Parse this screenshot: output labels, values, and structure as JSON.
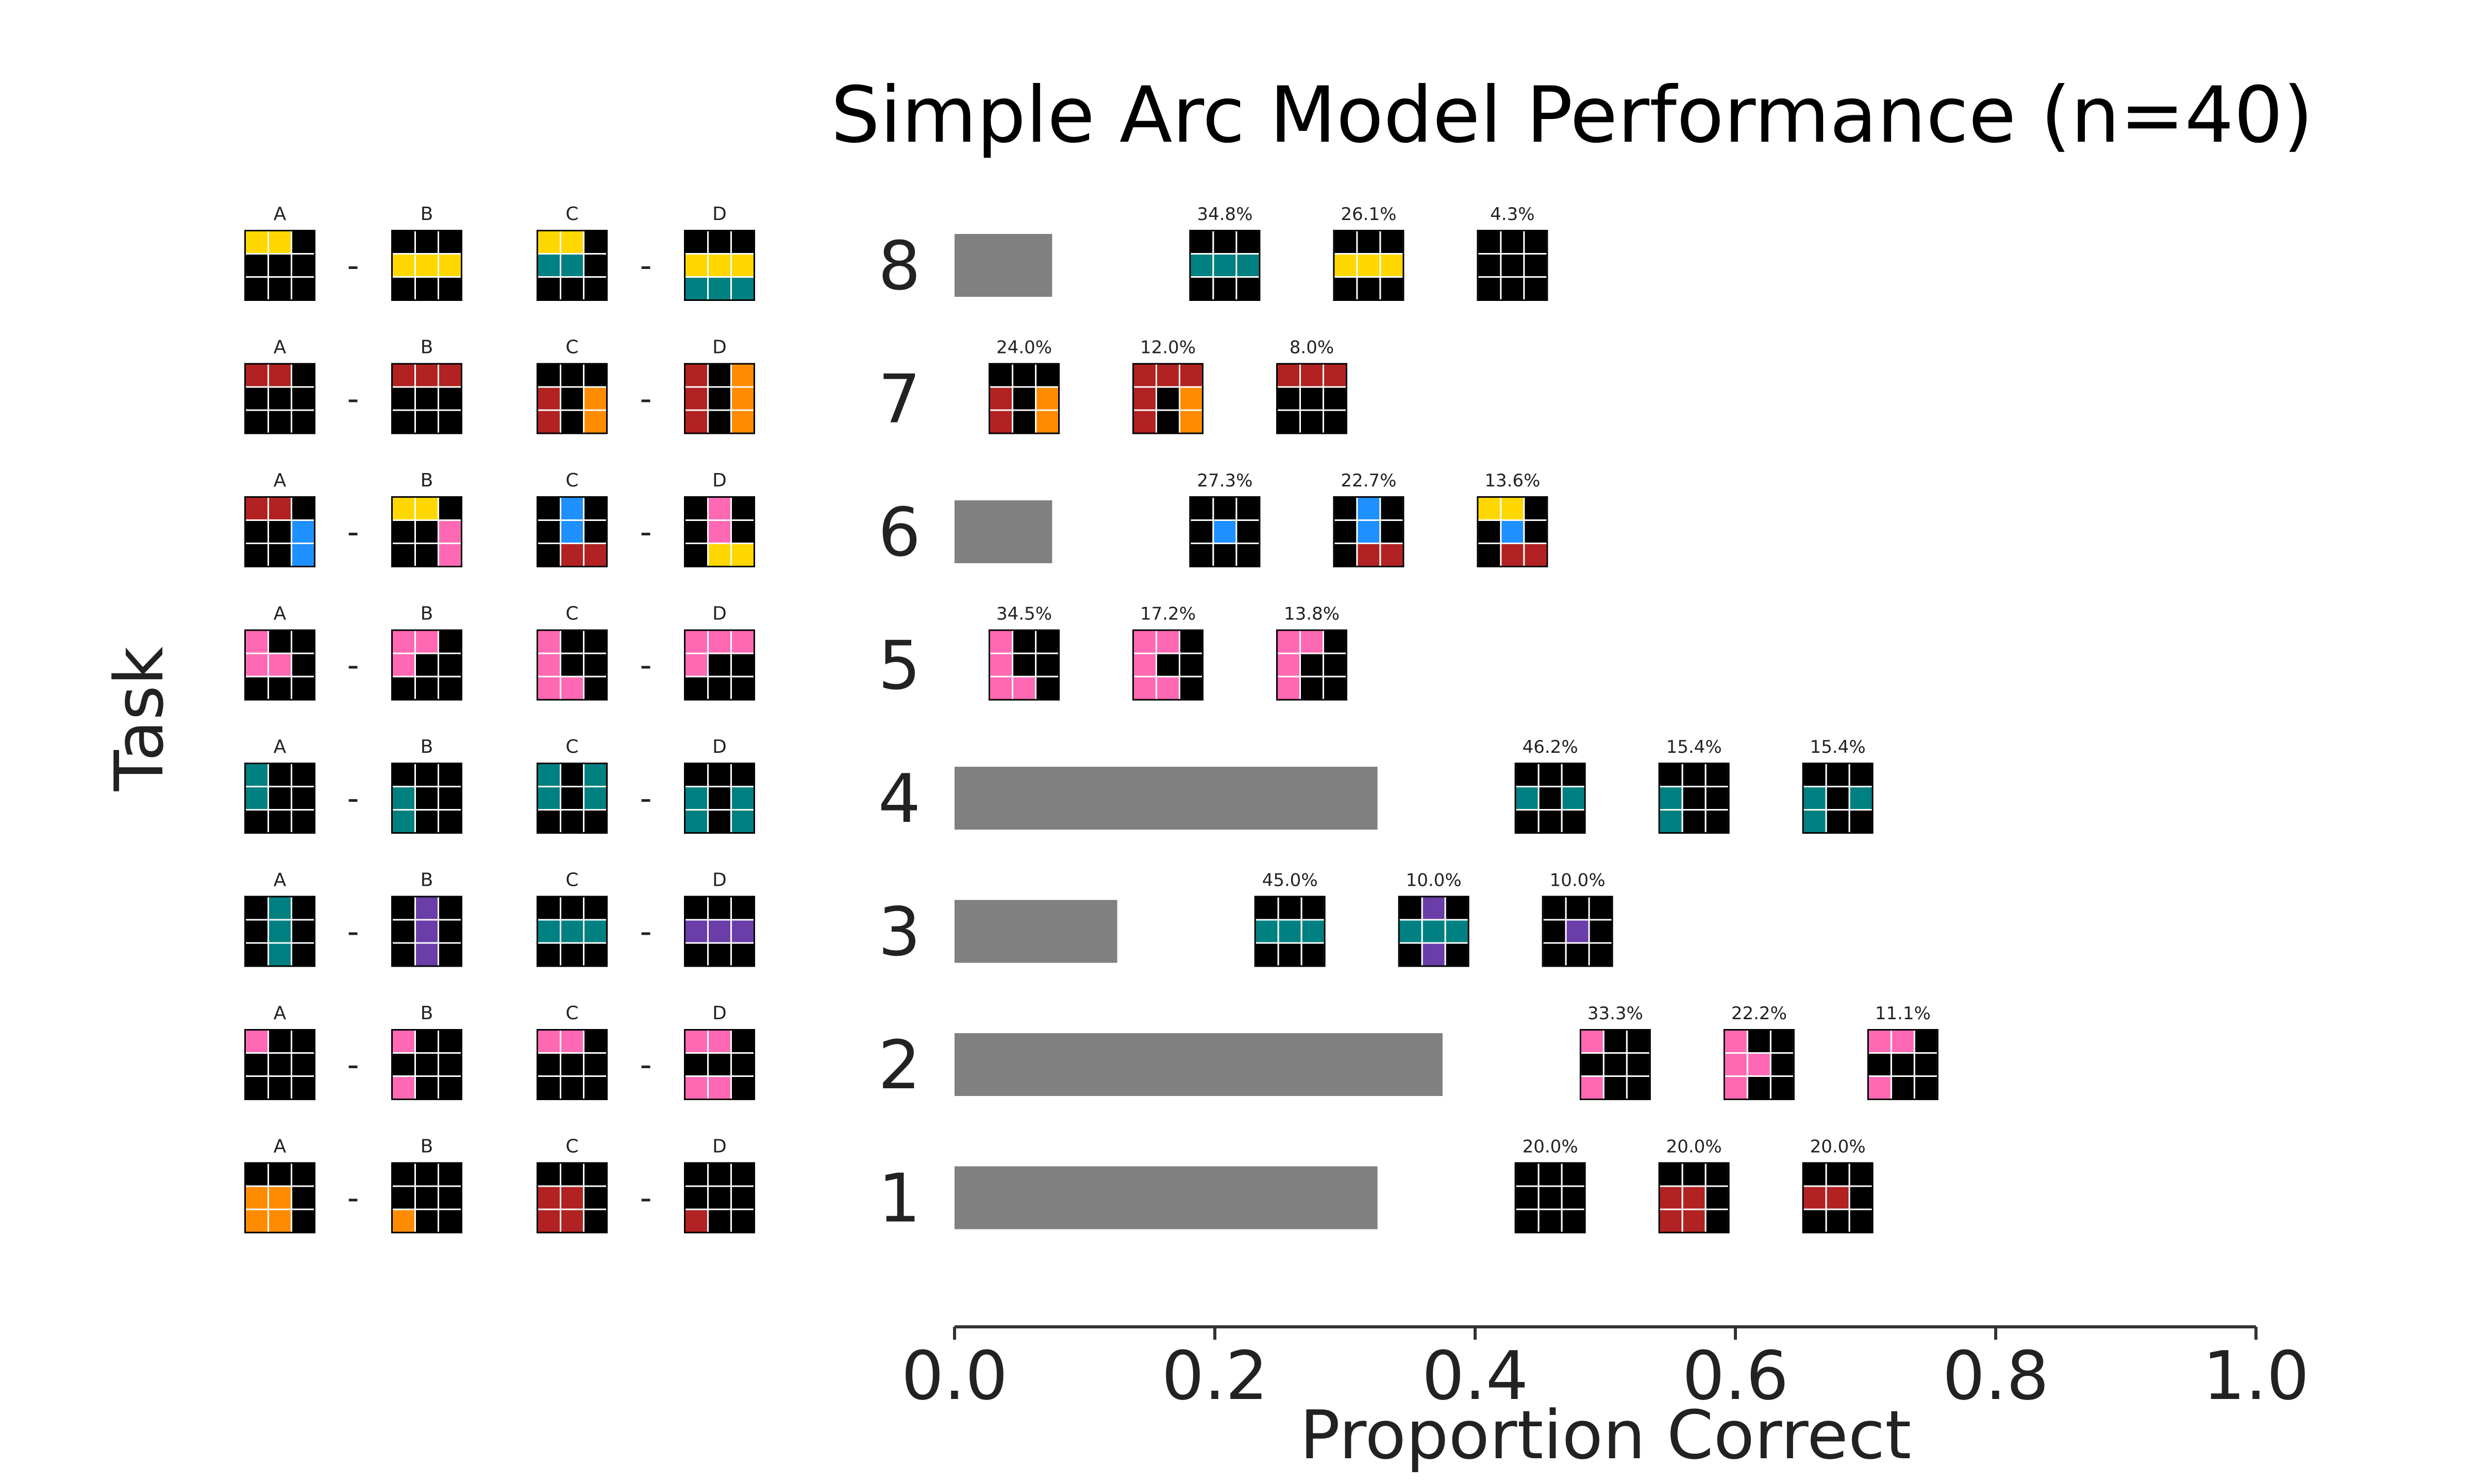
{
  "chart_data": {
    "type": "bar",
    "orientation": "horizontal",
    "title": "Simple Arc Model Performance (n=40)",
    "xlabel": "Proportion Correct",
    "ylabel": "Task",
    "xlim": [
      0,
      1
    ],
    "xticks": [
      "0.0",
      "0.2",
      "0.4",
      "0.6",
      "0.8",
      "1.0"
    ],
    "grid": false,
    "bar_color": "#808080",
    "palette": {
      "black": "#000000",
      "yellow": "#FFD700",
      "teal": "#008080",
      "red": "#B22222",
      "orange": "#FF8C00",
      "blue": "#1E90FF",
      "pink": "#FF69B4",
      "purple": "#6A3DA8"
    },
    "analogy_labels": [
      "A",
      "B",
      "C",
      "D"
    ],
    "separator": "-",
    "tasks": [
      {
        "task": "8",
        "value": 0.075,
        "analogy": [
          [
            "yellow",
            "yellow",
            "black",
            "black",
            "black",
            "black",
            "black",
            "black",
            "black"
          ],
          [
            "black",
            "black",
            "black",
            "yellow",
            "yellow",
            "yellow",
            "black",
            "black",
            "black"
          ],
          [
            "yellow",
            "yellow",
            "black",
            "teal",
            "teal",
            "black",
            "black",
            "black",
            "black"
          ],
          [
            "black",
            "black",
            "black",
            "yellow",
            "yellow",
            "yellow",
            "teal",
            "teal",
            "teal"
          ]
        ],
        "errors": [
          {
            "percent": "34.8%",
            "grid": [
              "black",
              "black",
              "black",
              "teal",
              "teal",
              "teal",
              "black",
              "black",
              "black"
            ]
          },
          {
            "percent": "26.1%",
            "grid": [
              "black",
              "black",
              "black",
              "yellow",
              "yellow",
              "yellow",
              "black",
              "black",
              "black"
            ]
          },
          {
            "percent": "4.3%",
            "grid": [
              "black",
              "black",
              "black",
              "black",
              "black",
              "black",
              "black",
              "black",
              "black"
            ]
          }
        ]
      },
      {
        "task": "7",
        "value": 0.0,
        "analogy": [
          [
            "red",
            "red",
            "black",
            "black",
            "black",
            "black",
            "black",
            "black",
            "black"
          ],
          [
            "red",
            "red",
            "red",
            "black",
            "black",
            "black",
            "black",
            "black",
            "black"
          ],
          [
            "black",
            "black",
            "black",
            "red",
            "black",
            "orange",
            "red",
            "black",
            "orange"
          ],
          [
            "red",
            "black",
            "orange",
            "red",
            "black",
            "orange",
            "red",
            "black",
            "orange"
          ]
        ],
        "errors": [
          {
            "percent": "24.0%",
            "grid": [
              "black",
              "black",
              "black",
              "red",
              "black",
              "orange",
              "red",
              "black",
              "orange"
            ]
          },
          {
            "percent": "12.0%",
            "grid": [
              "red",
              "red",
              "red",
              "red",
              "black",
              "orange",
              "red",
              "black",
              "orange"
            ]
          },
          {
            "percent": "8.0%",
            "grid": [
              "red",
              "red",
              "red",
              "black",
              "black",
              "black",
              "black",
              "black",
              "black"
            ]
          }
        ]
      },
      {
        "task": "6",
        "value": 0.075,
        "analogy": [
          [
            "red",
            "red",
            "black",
            "black",
            "black",
            "blue",
            "black",
            "black",
            "blue"
          ],
          [
            "yellow",
            "yellow",
            "black",
            "black",
            "black",
            "pink",
            "black",
            "black",
            "pink"
          ],
          [
            "black",
            "blue",
            "black",
            "black",
            "blue",
            "black",
            "black",
            "red",
            "red"
          ],
          [
            "black",
            "pink",
            "black",
            "black",
            "pink",
            "black",
            "black",
            "yellow",
            "yellow"
          ]
        ],
        "errors": [
          {
            "percent": "27.3%",
            "grid": [
              "black",
              "black",
              "black",
              "black",
              "blue",
              "black",
              "black",
              "black",
              "black"
            ]
          },
          {
            "percent": "22.7%",
            "grid": [
              "black",
              "blue",
              "black",
              "black",
              "blue",
              "black",
              "black",
              "red",
              "red"
            ]
          },
          {
            "percent": "13.6%",
            "grid": [
              "yellow",
              "yellow",
              "black",
              "black",
              "blue",
              "black",
              "black",
              "red",
              "red"
            ]
          }
        ]
      },
      {
        "task": "5",
        "value": 0.0,
        "analogy": [
          [
            "pink",
            "black",
            "black",
            "pink",
            "pink",
            "black",
            "black",
            "black",
            "black"
          ],
          [
            "pink",
            "pink",
            "black",
            "pink",
            "black",
            "black",
            "black",
            "black",
            "black"
          ],
          [
            "pink",
            "black",
            "black",
            "pink",
            "black",
            "black",
            "pink",
            "pink",
            "black"
          ],
          [
            "pink",
            "pink",
            "pink",
            "pink",
            "black",
            "black",
            "black",
            "black",
            "black"
          ]
        ],
        "errors": [
          {
            "percent": "34.5%",
            "grid": [
              "pink",
              "black",
              "black",
              "pink",
              "black",
              "black",
              "pink",
              "pink",
              "black"
            ]
          },
          {
            "percent": "17.2%",
            "grid": [
              "pink",
              "pink",
              "black",
              "pink",
              "black",
              "black",
              "pink",
              "pink",
              "black"
            ]
          },
          {
            "percent": "13.8%",
            "grid": [
              "pink",
              "pink",
              "black",
              "pink",
              "black",
              "black",
              "pink",
              "black",
              "black"
            ]
          }
        ]
      },
      {
        "task": "4",
        "value": 0.325,
        "analogy": [
          [
            "teal",
            "black",
            "black",
            "teal",
            "black",
            "black",
            "black",
            "black",
            "black"
          ],
          [
            "black",
            "black",
            "black",
            "teal",
            "black",
            "black",
            "teal",
            "black",
            "black"
          ],
          [
            "teal",
            "black",
            "teal",
            "teal",
            "black",
            "teal",
            "black",
            "black",
            "black"
          ],
          [
            "black",
            "black",
            "black",
            "teal",
            "black",
            "teal",
            "teal",
            "black",
            "teal"
          ]
        ],
        "errors": [
          {
            "percent": "46.2%",
            "grid": [
              "black",
              "black",
              "black",
              "teal",
              "black",
              "teal",
              "black",
              "black",
              "black"
            ]
          },
          {
            "percent": "15.4%",
            "grid": [
              "black",
              "black",
              "black",
              "teal",
              "black",
              "black",
              "teal",
              "black",
              "black"
            ]
          },
          {
            "percent": "15.4%",
            "grid": [
              "black",
              "black",
              "black",
              "teal",
              "black",
              "teal",
              "teal",
              "black",
              "black"
            ]
          }
        ]
      },
      {
        "task": "3",
        "value": 0.125,
        "analogy": [
          [
            "black",
            "teal",
            "black",
            "black",
            "teal",
            "black",
            "black",
            "teal",
            "black"
          ],
          [
            "black",
            "purple",
            "black",
            "black",
            "purple",
            "black",
            "black",
            "purple",
            "black"
          ],
          [
            "black",
            "black",
            "black",
            "teal",
            "teal",
            "teal",
            "black",
            "black",
            "black"
          ],
          [
            "black",
            "black",
            "black",
            "purple",
            "purple",
            "purple",
            "black",
            "black",
            "black"
          ]
        ],
        "errors": [
          {
            "percent": "45.0%",
            "grid": [
              "black",
              "black",
              "black",
              "teal",
              "teal",
              "teal",
              "black",
              "black",
              "black"
            ]
          },
          {
            "percent": "10.0%",
            "grid": [
              "black",
              "purple",
              "black",
              "teal",
              "teal",
              "teal",
              "black",
              "purple",
              "black"
            ]
          },
          {
            "percent": "10.0%",
            "grid": [
              "black",
              "black",
              "black",
              "black",
              "purple",
              "black",
              "black",
              "black",
              "black"
            ]
          }
        ]
      },
      {
        "task": "2",
        "value": 0.375,
        "analogy": [
          [
            "pink",
            "black",
            "black",
            "black",
            "black",
            "black",
            "black",
            "black",
            "black"
          ],
          [
            "pink",
            "black",
            "black",
            "black",
            "black",
            "black",
            "pink",
            "black",
            "black"
          ],
          [
            "pink",
            "pink",
            "black",
            "black",
            "black",
            "black",
            "black",
            "black",
            "black"
          ],
          [
            "pink",
            "pink",
            "black",
            "black",
            "black",
            "black",
            "pink",
            "pink",
            "black"
          ]
        ],
        "errors": [
          {
            "percent": "33.3%",
            "grid": [
              "pink",
              "black",
              "black",
              "black",
              "black",
              "black",
              "pink",
              "black",
              "black"
            ]
          },
          {
            "percent": "22.2%",
            "grid": [
              "pink",
              "black",
              "black",
              "pink",
              "pink",
              "black",
              "pink",
              "black",
              "black"
            ]
          },
          {
            "percent": "11.1%",
            "grid": [
              "pink",
              "pink",
              "black",
              "black",
              "black",
              "black",
              "pink",
              "black",
              "black"
            ]
          }
        ]
      },
      {
        "task": "1",
        "value": 0.325,
        "analogy": [
          [
            "black",
            "black",
            "black",
            "orange",
            "orange",
            "black",
            "orange",
            "orange",
            "black"
          ],
          [
            "black",
            "black",
            "black",
            "black",
            "black",
            "black",
            "orange",
            "black",
            "black"
          ],
          [
            "black",
            "black",
            "black",
            "red",
            "red",
            "black",
            "red",
            "red",
            "black"
          ],
          [
            "black",
            "black",
            "black",
            "black",
            "black",
            "black",
            "red",
            "black",
            "black"
          ]
        ],
        "errors": [
          {
            "percent": "20.0%",
            "grid": [
              "black",
              "black",
              "black",
              "black",
              "black",
              "black",
              "black",
              "black",
              "black"
            ]
          },
          {
            "percent": "20.0%",
            "grid": [
              "black",
              "black",
              "black",
              "red",
              "red",
              "black",
              "red",
              "red",
              "black"
            ]
          },
          {
            "percent": "20.0%",
            "grid": [
              "black",
              "black",
              "black",
              "red",
              "red",
              "black",
              "black",
              "black",
              "black"
            ]
          }
        ]
      }
    ]
  }
}
